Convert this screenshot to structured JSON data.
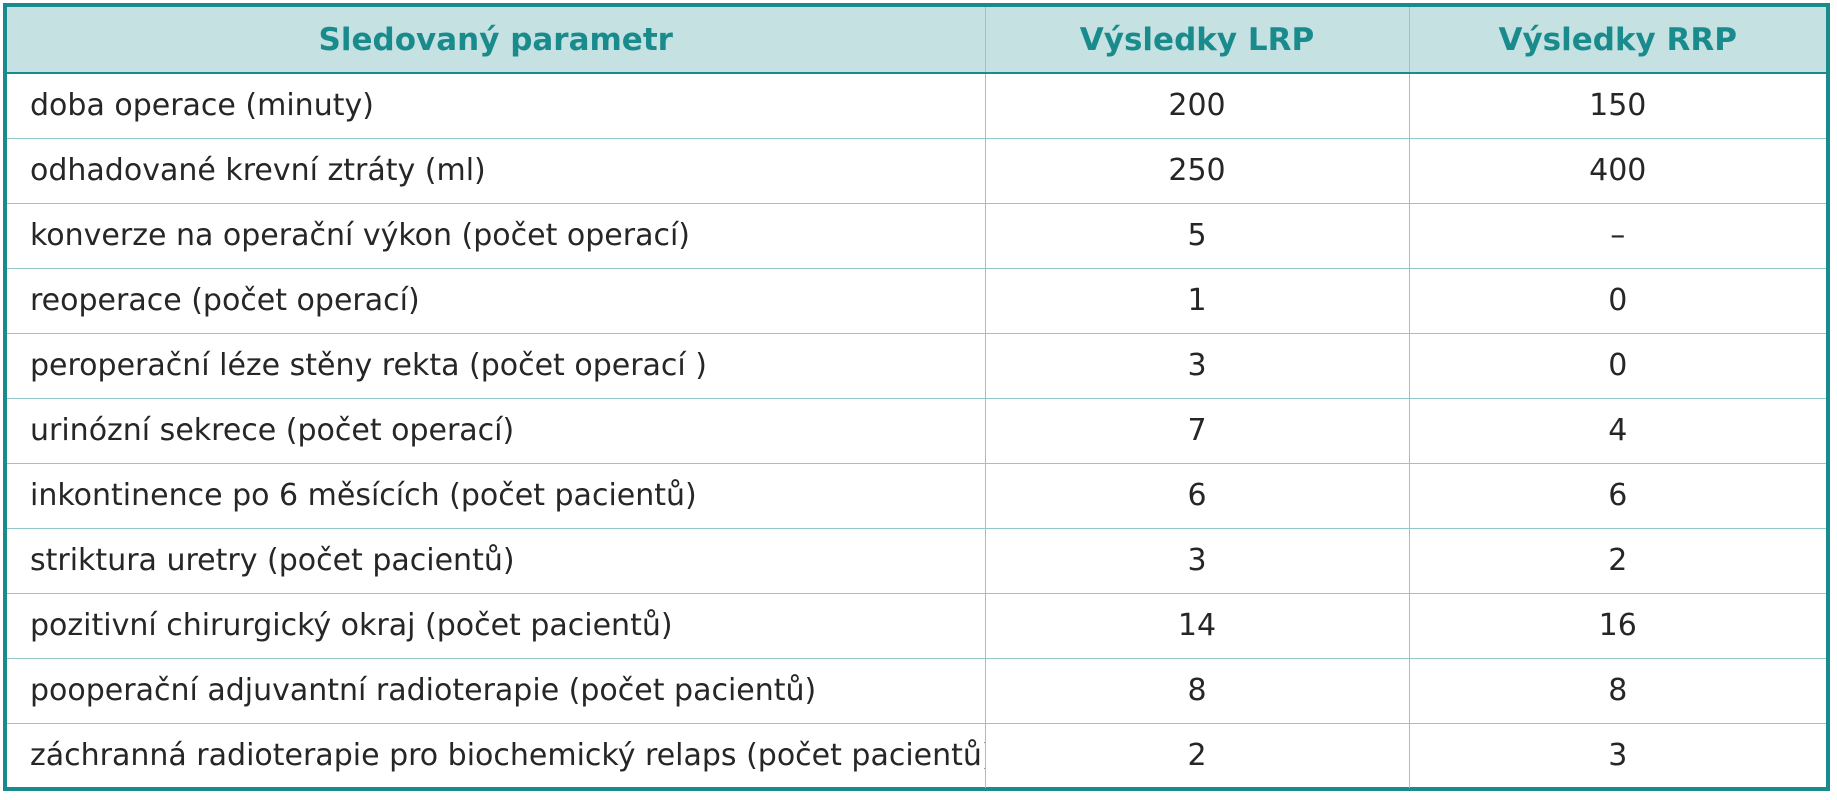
{
  "table": {
    "headers": [
      "Sledovaný parametr",
      "Výsledky LRP",
      "Výsledky RRP"
    ],
    "rows": [
      [
        "doba operace (minuty)",
        "200",
        "150"
      ],
      [
        "odhadované krevní ztráty (ml)",
        "250",
        "400"
      ],
      [
        "konverze na operační výkon (počet operací)",
        "5",
        "–"
      ],
      [
        "reoperace (počet operací)",
        "1",
        "0"
      ],
      [
        "peroperační léze stěny rekta (počet operací )",
        "3",
        "0"
      ],
      [
        "urinózní sekrece (počet operací)",
        "7",
        "4"
      ],
      [
        "inkontinence po 6 měsících (počet pacientů)",
        "6",
        "6"
      ],
      [
        "striktura uretry (počet pacientů)",
        "3",
        "2"
      ],
      [
        "pozitivní chirurgický okraj (počet pacientů)",
        "14",
        "16"
      ],
      [
        "pooperační adjuvantní radioterapie (počet pacientů)",
        "8",
        "8"
      ],
      [
        "záchranná radioterapie pro biochemický relaps (počet pacientů)",
        "2",
        "3"
      ]
    ]
  },
  "colors": {
    "border": "#1a8b8d",
    "header_background": "#c6e1e1",
    "header_text": "#1a8b8d",
    "inner_rule": "#93c8c9",
    "body_text": "#262626"
  }
}
